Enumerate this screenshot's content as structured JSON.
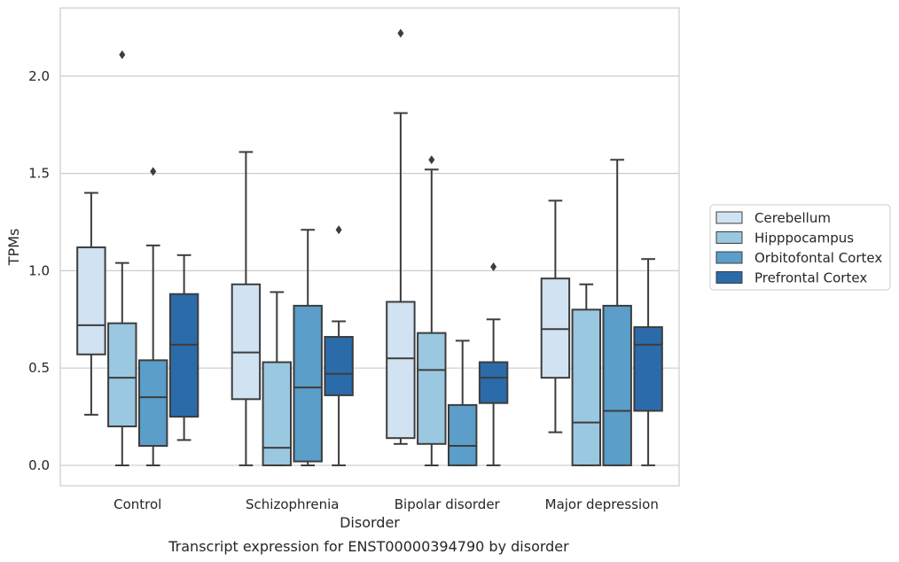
{
  "chart_data": {
    "type": "boxplot",
    "title": "",
    "caption": "Transcript expression for ENST00000394790 by disorder",
    "xlabel": "Disorder",
    "ylabel": "TPMs",
    "ylim": [
      -0.105,
      2.35
    ],
    "yticks": [
      "0.0",
      "0.5",
      "1.0",
      "1.5",
      "2.0"
    ],
    "grid": "horizontal",
    "legend_position": "right",
    "categories": [
      "Control",
      "Schizophrenia",
      "Bipolar disorder",
      "Major depression"
    ],
    "series": [
      {
        "name": "Cerebellum",
        "color": "#d1e2f2",
        "boxes": [
          {
            "whislo": 0.26,
            "q1": 0.57,
            "med": 0.72,
            "q3": 1.12,
            "whishi": 1.4,
            "fliers": []
          },
          {
            "whislo": 0.0,
            "q1": 0.34,
            "med": 0.58,
            "q3": 0.93,
            "whishi": 1.61,
            "fliers": []
          },
          {
            "whislo": 0.11,
            "q1": 0.14,
            "med": 0.55,
            "q3": 0.84,
            "whishi": 1.81,
            "fliers": [
              2.22
            ]
          },
          {
            "whislo": 0.17,
            "q1": 0.45,
            "med": 0.7,
            "q3": 0.96,
            "whishi": 1.36,
            "fliers": []
          }
        ]
      },
      {
        "name": "Hipppocampus",
        "color": "#9ac8e0",
        "boxes": [
          {
            "whislo": 0.0,
            "q1": 0.2,
            "med": 0.45,
            "q3": 0.73,
            "whishi": 1.04,
            "fliers": [
              2.11
            ]
          },
          {
            "whislo": 0.0,
            "q1": 0.0,
            "med": 0.09,
            "q3": 0.53,
            "whishi": 0.89,
            "fliers": []
          },
          {
            "whislo": 0.0,
            "q1": 0.11,
            "med": 0.49,
            "q3": 0.68,
            "whishi": 1.52,
            "fliers": [
              1.57
            ]
          },
          {
            "whislo": 0.0,
            "q1": 0.0,
            "med": 0.22,
            "q3": 0.8,
            "whishi": 0.93,
            "fliers": []
          }
        ]
      },
      {
        "name": "Orbitofontal Cortex",
        "color": "#5a9ec9",
        "boxes": [
          {
            "whislo": 0.0,
            "q1": 0.1,
            "med": 0.35,
            "q3": 0.54,
            "whishi": 1.13,
            "fliers": [
              1.51
            ]
          },
          {
            "whislo": 0.0,
            "q1": 0.02,
            "med": 0.4,
            "q3": 0.82,
            "whishi": 1.21,
            "fliers": []
          },
          {
            "whislo": 0.0,
            "q1": 0.0,
            "med": 0.1,
            "q3": 0.31,
            "whishi": 0.64,
            "fliers": []
          },
          {
            "whislo": 0.0,
            "q1": 0.0,
            "med": 0.28,
            "q3": 0.82,
            "whishi": 1.57,
            "fliers": []
          }
        ]
      },
      {
        "name": "Prefrontal Cortex",
        "color": "#2b6ba9",
        "boxes": [
          {
            "whislo": 0.13,
            "q1": 0.25,
            "med": 0.62,
            "q3": 0.88,
            "whishi": 1.08,
            "fliers": []
          },
          {
            "whislo": 0.0,
            "q1": 0.36,
            "med": 0.47,
            "q3": 0.66,
            "whishi": 0.74,
            "fliers": [
              1.21
            ]
          },
          {
            "whislo": 0.0,
            "q1": 0.32,
            "med": 0.45,
            "q3": 0.53,
            "whishi": 0.75,
            "fliers": [
              1.02
            ]
          },
          {
            "whislo": 0.0,
            "q1": 0.28,
            "med": 0.62,
            "q3": 0.71,
            "whishi": 1.06,
            "fliers": []
          }
        ]
      }
    ]
  }
}
